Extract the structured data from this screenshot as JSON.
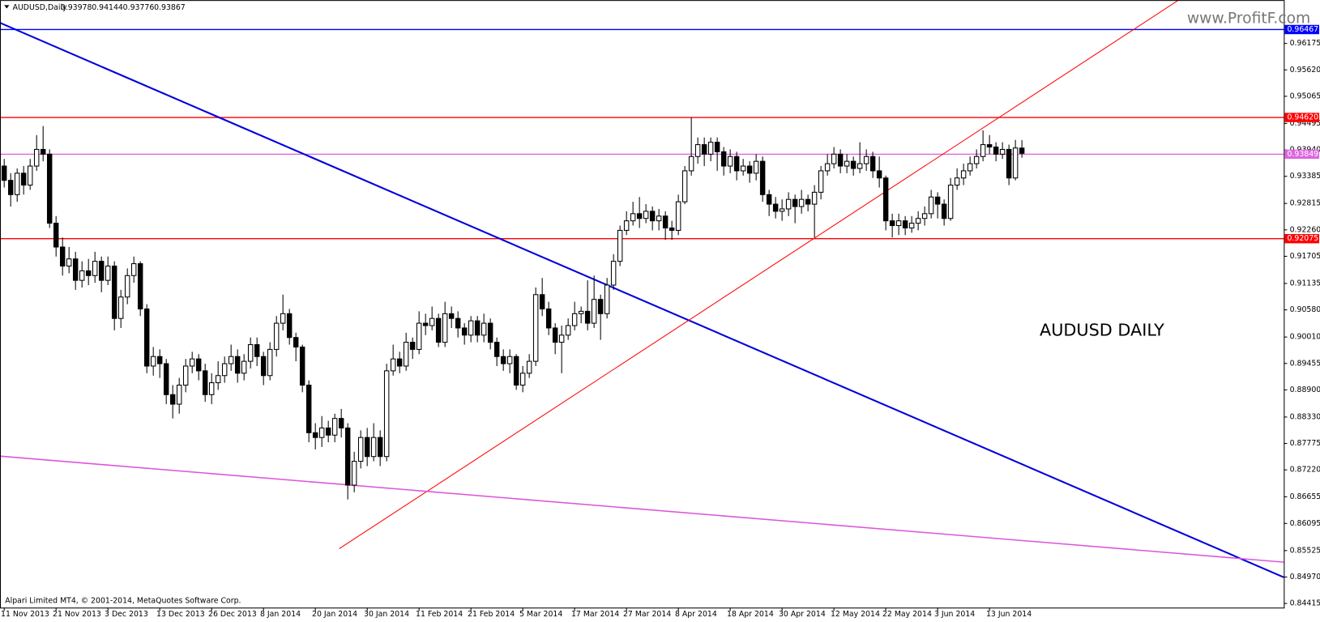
{
  "chart_data": {
    "type": "candlestick",
    "title": "AUDUSD,Daily",
    "annotation": "AUDUSD DAILY",
    "watermark": "www.ProfitF.com",
    "footer": "Alpari Limited MT4, © 2001-2014, MetaQuotes Software Corp.",
    "categories": [
      "11 Nov 2013",
      null,
      null,
      null,
      null,
      null,
      null,
      null,
      "21 Nov 2013",
      null,
      null,
      null,
      null,
      null,
      null,
      null,
      "3 Dec 2013",
      null,
      null,
      null,
      null,
      null,
      null,
      null,
      "13 Dec 2013",
      null,
      null,
      null,
      null,
      null,
      null,
      null,
      "26 Dec 2013",
      null,
      null,
      null,
      null,
      null,
      null,
      null,
      "8 Jan 2014",
      null,
      null,
      null,
      null,
      null,
      null,
      null,
      "20 Jan 2014",
      null,
      null,
      null,
      null,
      null,
      null,
      null,
      "30 Jan 2014",
      null,
      null,
      null,
      null,
      null,
      null,
      null,
      "11 Feb 2014",
      null,
      null,
      null,
      null,
      null,
      null,
      null,
      "21 Feb 2014",
      null,
      null,
      null,
      null,
      null,
      null,
      null,
      "5 Mar 2014",
      null,
      null,
      null,
      null,
      null,
      null,
      null,
      "17 Mar 2014",
      null,
      null,
      null,
      null,
      null,
      null,
      null,
      "27 Mar 2014",
      null,
      null,
      null,
      null,
      null,
      null,
      null,
      "8 Apr 2014",
      null,
      null,
      null,
      null,
      null,
      null,
      null,
      "18 Apr 2014",
      null,
      null,
      null,
      null,
      null,
      null,
      null,
      "30 Apr 2014",
      null,
      null,
      null,
      null,
      null,
      null,
      null,
      "12 May 2014",
      null,
      null,
      null,
      null,
      null,
      null,
      null,
      "22 May 2014",
      null,
      null,
      null,
      null,
      null,
      null,
      null,
      "3 Jun 2014",
      null,
      null,
      null,
      null,
      null,
      null,
      null,
      "13 Jun 2014",
      null,
      null,
      null,
      null,
      null
    ],
    "open": [
      0.936,
      0.933,
      0.93,
      0.9345,
      0.932,
      0.936,
      0.9395,
      0.9385,
      0.924,
      0.919,
      0.915,
      0.9165,
      0.912,
      0.914,
      0.913,
      0.916,
      0.912,
      0.915,
      0.904,
      0.9085,
      0.913,
      0.9155,
      0.906,
      0.894,
      0.896,
      0.8945,
      0.888,
      0.886,
      0.89,
      0.894,
      0.8955,
      0.893,
      0.888,
      0.8905,
      0.892,
      0.8945,
      0.896,
      0.8925,
      0.895,
      0.8985,
      0.896,
      0.892,
      0.8975,
      0.903,
      0.905,
      0.9,
      0.898,
      0.89,
      0.88,
      0.879,
      0.881,
      0.8795,
      0.883,
      0.881,
      0.869,
      0.874,
      0.879,
      0.875,
      0.879,
      0.875,
      0.893,
      0.8955,
      0.894,
      0.899,
      0.8975,
      0.903,
      0.9025,
      0.904,
      0.899,
      0.905,
      0.904,
      0.902,
      0.9005,
      0.9035,
      0.9005,
      0.903,
      0.899,
      0.896,
      0.8945,
      0.896,
      0.89,
      0.8925,
      0.895,
      0.909,
      0.906,
      0.902,
      0.899,
      0.9005,
      0.9025,
      0.905,
      0.9055,
      0.903,
      0.908,
      0.905,
      0.911,
      0.916,
      0.9225,
      0.9245,
      0.926,
      0.925,
      0.9265,
      0.9245,
      0.9255,
      0.923,
      0.9225,
      0.9285,
      0.935,
      0.938,
      0.9405,
      0.9385,
      0.941,
      0.939,
      0.936,
      0.938,
      0.935,
      0.936,
      0.9345,
      0.937,
      0.93,
      0.928,
      0.9265,
      0.927,
      0.929,
      0.9275,
      0.929,
      0.928,
      0.9305,
      0.935,
      0.9365,
      0.9385,
      0.936,
      0.937,
      0.9355,
      0.9365,
      0.938,
      0.935,
      0.9335,
      0.9245,
      0.9235,
      0.9245,
      0.923,
      0.924,
      0.925,
      0.926,
      0.9295,
      0.928,
      0.925,
      0.932,
      0.9335,
      0.935,
      0.9365,
      0.938,
      0.9405,
      0.94,
      0.9385,
      0.9395,
      0.9335,
      0.93978
    ],
    "high": [
      0.9375,
      0.9345,
      0.9355,
      0.936,
      0.9375,
      0.9425,
      0.9444,
      0.9395,
      0.9255,
      0.921,
      0.919,
      0.918,
      0.916,
      0.9165,
      0.918,
      0.917,
      0.917,
      0.916,
      0.91,
      0.9145,
      0.917,
      0.916,
      0.907,
      0.898,
      0.8975,
      0.8955,
      0.89,
      0.8915,
      0.8955,
      0.897,
      0.8965,
      0.8945,
      0.8925,
      0.895,
      0.896,
      0.8985,
      0.8975,
      0.8965,
      0.9,
      0.9,
      0.897,
      0.899,
      0.9045,
      0.909,
      0.906,
      0.901,
      0.8985,
      0.891,
      0.882,
      0.8835,
      0.8825,
      0.884,
      0.885,
      0.882,
      0.876,
      0.8805,
      0.881,
      0.882,
      0.8805,
      0.8945,
      0.8985,
      0.897,
      0.901,
      0.9,
      0.9055,
      0.905,
      0.9065,
      0.905,
      0.9075,
      0.9065,
      0.9055,
      0.903,
      0.9045,
      0.9045,
      0.905,
      0.904,
      0.9,
      0.8975,
      0.8975,
      0.8965,
      0.894,
      0.8965,
      0.9105,
      0.9125,
      0.9075,
      0.903,
      0.9025,
      0.904,
      0.9075,
      0.9065,
      0.912,
      0.913,
      0.909,
      0.9125,
      0.9175,
      0.9235,
      0.9265,
      0.9285,
      0.9295,
      0.928,
      0.9275,
      0.927,
      0.9265,
      0.9245,
      0.93,
      0.936,
      0.9462,
      0.942,
      0.942,
      0.942,
      0.942,
      0.94,
      0.9395,
      0.939,
      0.9375,
      0.937,
      0.9385,
      0.938,
      0.931,
      0.9295,
      0.929,
      0.9305,
      0.93,
      0.931,
      0.93,
      0.932,
      0.936,
      0.9385,
      0.94,
      0.9395,
      0.9385,
      0.938,
      0.941,
      0.9395,
      0.939,
      0.938,
      0.934,
      0.926,
      0.926,
      0.9255,
      0.9255,
      0.9265,
      0.9275,
      0.931,
      0.9305,
      0.929,
      0.9335,
      0.9355,
      0.9365,
      0.938,
      0.9395,
      0.9435,
      0.9425,
      0.941,
      0.941,
      0.9405,
      0.9415,
      0.94144
    ],
    "low": [
      0.9315,
      0.9275,
      0.9285,
      0.93,
      0.931,
      0.935,
      0.937,
      0.923,
      0.917,
      0.913,
      0.9135,
      0.91,
      0.9105,
      0.911,
      0.9115,
      0.9095,
      0.911,
      0.9015,
      0.902,
      0.907,
      0.9115,
      0.9045,
      0.8925,
      0.892,
      0.8915,
      0.886,
      0.883,
      0.884,
      0.8885,
      0.8925,
      0.891,
      0.8865,
      0.886,
      0.889,
      0.8905,
      0.893,
      0.8905,
      0.891,
      0.8935,
      0.894,
      0.89,
      0.891,
      0.896,
      0.9015,
      0.8985,
      0.895,
      0.8885,
      0.878,
      0.8765,
      0.877,
      0.878,
      0.878,
      0.879,
      0.866,
      0.8675,
      0.8725,
      0.873,
      0.874,
      0.873,
      0.874,
      0.892,
      0.8925,
      0.893,
      0.8955,
      0.8965,
      0.9005,
      0.9015,
      0.898,
      0.898,
      0.902,
      0.9,
      0.8985,
      0.899,
      0.899,
      0.899,
      0.8975,
      0.894,
      0.893,
      0.8925,
      0.889,
      0.8885,
      0.8915,
      0.894,
      0.9045,
      0.9005,
      0.8965,
      0.8925,
      0.8995,
      0.9015,
      0.903,
      0.9015,
      0.902,
      0.8995,
      0.904,
      0.91,
      0.915,
      0.9215,
      0.9235,
      0.923,
      0.924,
      0.9225,
      0.9225,
      0.9205,
      0.9205,
      0.9215,
      0.928,
      0.934,
      0.9365,
      0.936,
      0.937,
      0.935,
      0.934,
      0.9345,
      0.933,
      0.934,
      0.9325,
      0.933,
      0.9285,
      0.9255,
      0.925,
      0.9245,
      0.9255,
      0.924,
      0.926,
      0.9265,
      0.921,
      0.929,
      0.934,
      0.9355,
      0.9345,
      0.9345,
      0.934,
      0.9345,
      0.935,
      0.9335,
      0.9315,
      0.9225,
      0.921,
      0.9215,
      0.9215,
      0.922,
      0.9225,
      0.9235,
      0.925,
      0.925,
      0.9235,
      0.9245,
      0.931,
      0.932,
      0.934,
      0.9355,
      0.937,
      0.9385,
      0.937,
      0.9375,
      0.932,
      0.933,
      0.93776
    ],
    "close": [
      0.933,
      0.93,
      0.9345,
      0.932,
      0.936,
      0.9395,
      0.9385,
      0.924,
      0.919,
      0.915,
      0.9165,
      0.912,
      0.914,
      0.913,
      0.916,
      0.912,
      0.915,
      0.904,
      0.9085,
      0.913,
      0.9155,
      0.906,
      0.894,
      0.896,
      0.8945,
      0.888,
      0.886,
      0.89,
      0.894,
      0.8955,
      0.893,
      0.888,
      0.8905,
      0.892,
      0.8945,
      0.896,
      0.8925,
      0.895,
      0.8985,
      0.896,
      0.892,
      0.8975,
      0.903,
      0.905,
      0.9,
      0.898,
      0.89,
      0.88,
      0.879,
      0.881,
      0.8795,
      0.883,
      0.881,
      0.869,
      0.874,
      0.879,
      0.875,
      0.879,
      0.875,
      0.893,
      0.8955,
      0.894,
      0.899,
      0.8975,
      0.903,
      0.9025,
      0.904,
      0.899,
      0.905,
      0.904,
      0.902,
      0.9005,
      0.9035,
      0.9005,
      0.903,
      0.899,
      0.896,
      0.8945,
      0.896,
      0.89,
      0.8925,
      0.895,
      0.909,
      0.906,
      0.902,
      0.899,
      0.9005,
      0.9025,
      0.905,
      0.9055,
      0.903,
      0.908,
      0.905,
      0.911,
      0.916,
      0.9225,
      0.9245,
      0.926,
      0.925,
      0.9265,
      0.9245,
      0.9255,
      0.923,
      0.9225,
      0.9285,
      0.935,
      0.938,
      0.9405,
      0.9385,
      0.941,
      0.939,
      0.936,
      0.938,
      0.935,
      0.936,
      0.9345,
      0.937,
      0.93,
      0.928,
      0.9265,
      0.927,
      0.929,
      0.9275,
      0.929,
      0.928,
      0.9305,
      0.935,
      0.9365,
      0.9385,
      0.936,
      0.937,
      0.9355,
      0.9365,
      0.938,
      0.935,
      0.9335,
      0.9245,
      0.9235,
      0.9245,
      0.923,
      0.924,
      0.925,
      0.926,
      0.9295,
      0.928,
      0.925,
      0.932,
      0.9335,
      0.935,
      0.9365,
      0.938,
      0.9405,
      0.94,
      0.9385,
      0.9395,
      0.9335,
      0.9398,
      0.93867
    ],
    "ylim": [
      0.84328,
      0.97085
    ],
    "yticks": [
      0.96175,
      {
        "value": 0.9562,
        "label": "0.95620"
      },
      0.95065,
      0.94495,
      {
        "value": 0.9394,
        "label": "0.93940"
      },
      0.93385,
      0.92815,
      {
        "value": 0.9226,
        "label": "0.92260"
      },
      0.91705,
      0.91135,
      {
        "value": 0.9058,
        "label": "0.90580"
      },
      {
        "value": 0.9001,
        "label": "0.90010"
      },
      0.89455,
      {
        "value": 0.889,
        "label": "0.88900"
      },
      {
        "value": 0.8833,
        "label": "0.88330"
      },
      0.87775,
      {
        "value": 0.8722,
        "label": "0.87220"
      },
      0.86655,
      0.86095,
      0.85525,
      {
        "value": 0.8497,
        "label": "0.84970"
      },
      0.84415
    ],
    "levels": [
      {
        "value": 0.96467,
        "color": "#0000ff"
      },
      {
        "value": 0.9462,
        "label": "0.94620",
        "color": "#ff0000"
      },
      {
        "value": 0.93849,
        "color": "#dd66dd"
      },
      {
        "value": 0.92075,
        "color": "#ff0000"
      }
    ],
    "grid": false
  }
}
